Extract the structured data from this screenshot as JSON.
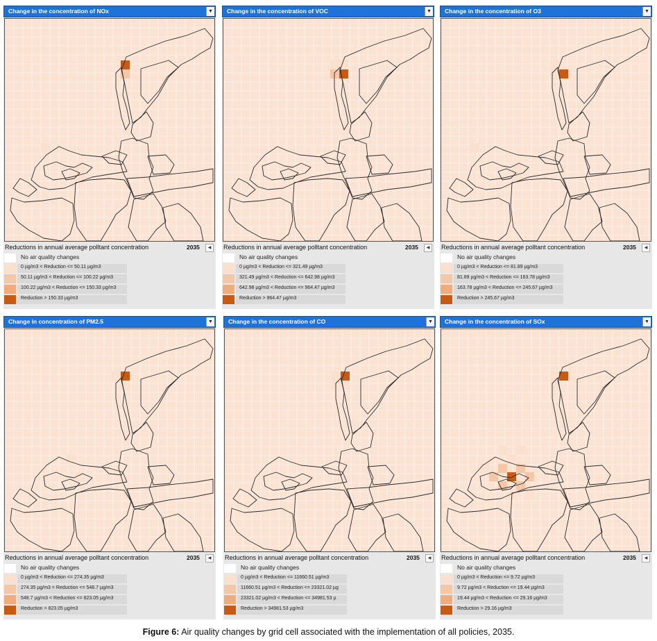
{
  "legend_title": "Reductions in annual average polltant concentration",
  "year": "2035",
  "colors": {
    "none": "#ffffff",
    "level1": "#f9e0cf",
    "level2": "#f4c7a6",
    "level3": "#f0ac7a",
    "level4": "#c85a12",
    "map_bg": "#fae3d3",
    "header": "#1e73d8"
  },
  "panels": [
    {
      "title": "Change in the concentration of NOx",
      "legend": [
        "No air quality changes",
        "0 µg/m3 < Reduction <= 50.11 µg/m3",
        "50.11 µg/m3 < Reduction <= 100.22 µg/m3",
        "100.22 µg/m3 < Reduction <= 150.33 µg/m3",
        "Reduction > 150.33 µg/m3"
      ]
    },
    {
      "title": "Change in the concentration of VOC",
      "legend": [
        "No air quality changes",
        "0 µg/m3 < Reduction <= 321.49 µg/m3",
        "321.49 µg/m3 < Reduction <= 642.98 µg/m3",
        "642.98 µg/m3 < Reduction <= 964.47 µg/m3",
        "Reduction > 964.47 µg/m3"
      ]
    },
    {
      "title": "Change in the concentration of O3",
      "legend": [
        "No air quality changes",
        "0 µg/m3 < Reduction <= 81.89 µg/m3",
        "81.89 µg/m3 < Reduction <= 163.78 µg/m3",
        "163.78 µg/m3 < Reduction <= 245.67 µg/m3",
        "Reduction > 245.67 µg/m3"
      ]
    },
    {
      "title": "Change in concentration of PM2.5",
      "legend": [
        "No air quality changes",
        "0 µg/m3 < Reduction <= 274.35 µg/m3",
        "274.35 µg/m3 < Reduction <= 548.7 µg/m3",
        "548.7 µg/m3 < Reduction <= 823.05 µg/m3",
        "Reduction > 823.05 µg/m3"
      ]
    },
    {
      "title": "Change in the concentration of CO",
      "legend": [
        "No air quality changes",
        "0 µg/m3 < Reduction <= 11660.51 µg/m3",
        "11660.51 µg/m3 < Reduction <= 23321.02 µg",
        "23321.02 µg/m3 < Reduction <= 34981.53 µ",
        "Reduction > 34981.53 µg/m3"
      ]
    },
    {
      "title": "Change in the concentration of SOx",
      "legend": [
        "No air quality changes",
        "0 µg/m3 < Reduction <= 9.72 µg/m3",
        "9.72 µg/m3 < Reduction <= 19.44 µg/m3",
        "19.44 µg/m3 < Reduction <= 29.16 µg/m3",
        "Reduction > 29.16 µg/m3"
      ]
    }
  ],
  "caption": {
    "label": "Figure 6:",
    "text": " Air quality changes by grid cell associated with the implementation of all policies, 2035."
  }
}
